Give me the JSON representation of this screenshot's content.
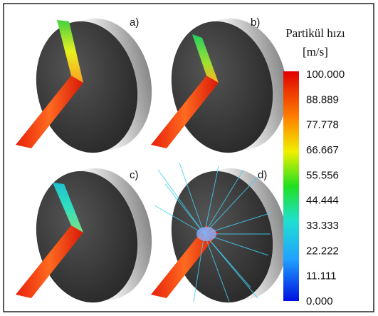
{
  "panels": [
    {
      "label": "a)"
    },
    {
      "label": "b)"
    },
    {
      "label": "c)"
    },
    {
      "label": "d)"
    }
  ],
  "colorbar": {
    "title": "Partikül hızı",
    "unit": "[m/s]",
    "ticks": [
      "100.000",
      "88.889",
      "77.778",
      "66.667",
      "55.556",
      "44.444",
      "33.333",
      "22.222",
      "11.111",
      "0.000"
    ]
  }
}
